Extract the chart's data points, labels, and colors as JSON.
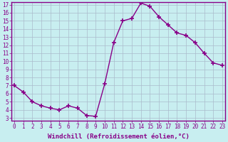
{
  "x": [
    0,
    1,
    2,
    3,
    4,
    5,
    6,
    7,
    8,
    9,
    10,
    11,
    12,
    13,
    14,
    15,
    16,
    17,
    18,
    19,
    20,
    21,
    22,
    23
  ],
  "y": [
    7.0,
    6.2,
    5.0,
    4.5,
    4.2,
    4.0,
    4.5,
    4.2,
    3.3,
    3.2,
    7.2,
    12.3,
    15.0,
    15.3,
    17.2,
    16.8,
    15.5,
    14.5,
    13.5,
    13.2,
    12.3,
    11.0,
    9.8,
    9.5
  ],
  "line_color": "#880088",
  "marker": "+",
  "marker_size": 4,
  "bg_color": "#c8eef0",
  "grid_color": "#aabbcc",
  "xlabel": "Windchill (Refroidissement éolien,°C)",
  "ylabel": "",
  "ylim_min": 3,
  "ylim_max": 17,
  "xlim_min": 0,
  "xlim_max": 23,
  "yticks": [
    3,
    4,
    5,
    6,
    7,
    8,
    9,
    10,
    11,
    12,
    13,
    14,
    15,
    16,
    17
  ],
  "xticks": [
    0,
    1,
    2,
    3,
    4,
    5,
    6,
    7,
    8,
    9,
    10,
    11,
    12,
    13,
    14,
    15,
    16,
    17,
    18,
    19,
    20,
    21,
    22,
    23
  ],
  "tick_fontsize": 5.5,
  "xlabel_fontsize": 6.5,
  "spine_color": "#880088",
  "axis_bg_color": "#c8eef0",
  "linewidth": 1.0,
  "marker_linewidth": 1.2
}
